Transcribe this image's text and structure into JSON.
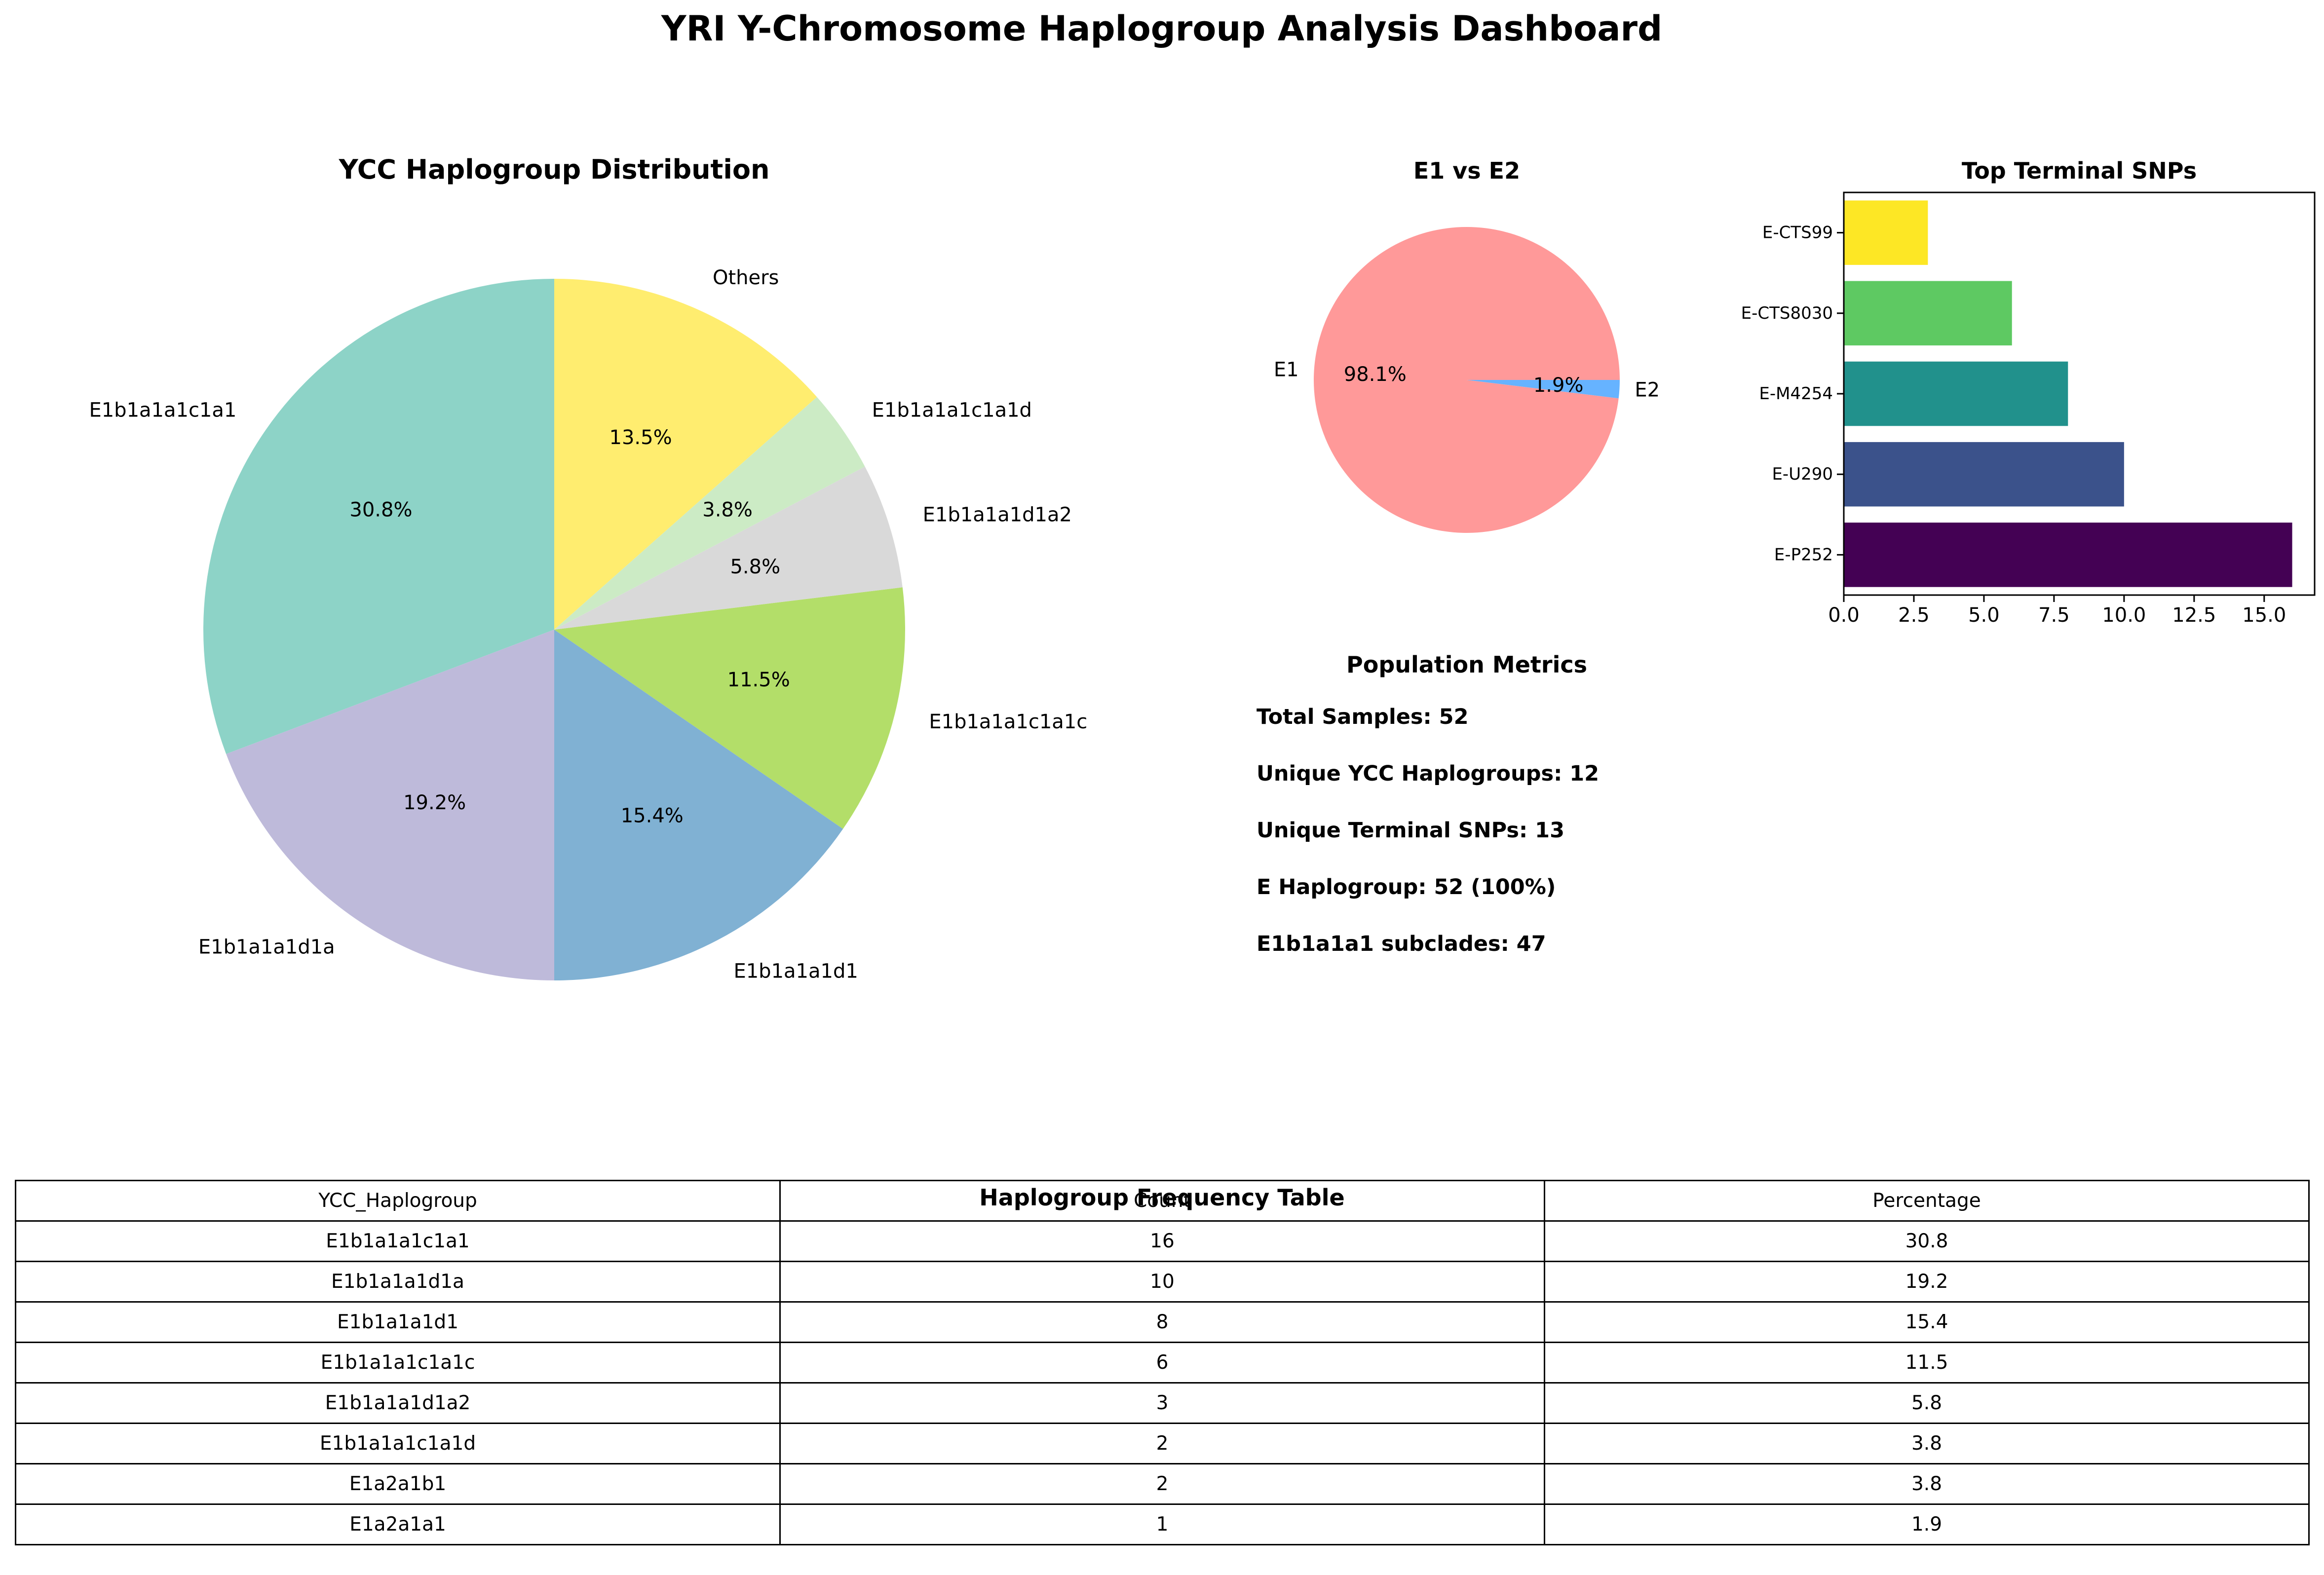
{
  "dashboard": {
    "title": "YRI Y-Chromosome Haplogroup Analysis Dashboard"
  },
  "chart_data": [
    {
      "type": "pie",
      "title": "YCC Haplogroup Distribution",
      "labels": [
        "E1b1a1a1c1a1",
        "E1b1a1a1d1a",
        "E1b1a1a1d1",
        "E1b1a1a1c1a1c",
        "E1b1a1a1d1a2",
        "E1b1a1a1c1a1d",
        "Others"
      ],
      "values": [
        16,
        10,
        8,
        6,
        3,
        2,
        7
      ],
      "percent_labels": [
        "30.8%",
        "19.2%",
        "15.4%",
        "11.5%",
        "5.8%",
        "3.8%",
        "13.5%"
      ],
      "colors": [
        "#8dd3c7",
        "#bebada",
        "#80b1d3",
        "#b3de69",
        "#d9d9d9",
        "#ccebc5",
        "#ffed6f"
      ],
      "start_angle": 90,
      "direction": "counterclockwise"
    },
    {
      "type": "pie",
      "title": "E1 vs E2",
      "labels": [
        "E1",
        "E2"
      ],
      "values": [
        51,
        1
      ],
      "percent_labels": [
        "98.1%",
        "1.9%"
      ],
      "colors": [
        "#ff9999",
        "#66b3ff"
      ],
      "start_angle": 0,
      "direction": "counterclockwise"
    },
    {
      "type": "bar",
      "orientation": "horizontal",
      "title": "Top Terminal SNPs",
      "categories": [
        "E-P252",
        "E-U290",
        "E-M4254",
        "E-CTS8030",
        "E-CTS99"
      ],
      "values": [
        16,
        10,
        8,
        6,
        3
      ],
      "colors": [
        "#440154",
        "#3b528b",
        "#21918c",
        "#5ec962",
        "#fde725"
      ],
      "xlim": [
        0,
        16.8
      ],
      "xticks": [
        "0.0",
        "2.5",
        "5.0",
        "7.5",
        "10.0",
        "12.5",
        "15.0"
      ],
      "grid": false
    },
    {
      "type": "table",
      "title": "Haplogroup Frequency Table",
      "columns": [
        "YCC_Haplogroup",
        "Count",
        "Percentage"
      ],
      "rows": [
        [
          "E1b1a1a1c1a1",
          "16",
          "30.8"
        ],
        [
          "E1b1a1a1d1a",
          "10",
          "19.2"
        ],
        [
          "E1b1a1a1d1",
          "8",
          "15.4"
        ],
        [
          "E1b1a1a1c1a1c",
          "6",
          "11.5"
        ],
        [
          "E1b1a1a1d1a2",
          "3",
          "5.8"
        ],
        [
          "E1b1a1a1c1a1d",
          "2",
          "3.8"
        ],
        [
          "E1a2a1b1",
          "2",
          "3.8"
        ],
        [
          "E1a2a1a1",
          "1",
          "1.9"
        ]
      ]
    }
  ],
  "metrics": {
    "title": "Population Metrics",
    "lines": [
      "Total Samples: 52",
      "Unique YCC Haplogroups: 12",
      "Unique Terminal SNPs: 13",
      "E Haplogroup: 52 (100%)",
      "E1b1a1a1 subclades: 47"
    ]
  }
}
